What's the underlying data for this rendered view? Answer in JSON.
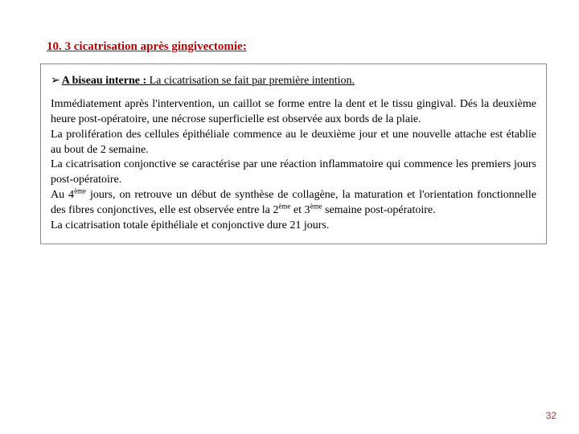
{
  "heading": "10. 3 cicatrisation après gingivectomie:",
  "bullet": {
    "symbol": "➢",
    "bold": "A biseau interne :",
    "rest": " La cicatrisation se fait par première intention."
  },
  "paragraphs": {
    "p1": "Immédiatement après l'intervention, un caillot se forme entre la dent et le tissu gingival. Dés la deuxième heure post-opératoire, une nécrose superficielle est observée aux bords de la plaie.",
    "p2": "La prolifération des cellules épithéliale commence au le deuxième jour et une nouvelle attache est établie au bout de 2 semaine.",
    "p3": "La cicatrisation conjonctive se caractérise par une réaction inflammatoire qui commence les premiers jours post-opératoire.",
    "p4a": "Au 4",
    "p4sup1": "ème",
    "p4b": " jours, on retrouve un début de synthèse de collagène, la maturation et l'orientation fonctionnelle des fibres conjonctives, elle est observée entre la 2",
    "p4sup2": "ème",
    "p4c": " et 3",
    "p4sup3": "ème",
    "p4d": " semaine post-opératoire.",
    "p5": "La cicatrisation totale épithéliale et conjonctive dure 21 jours."
  },
  "pageNumber": "32",
  "colors": {
    "heading": "#c00000",
    "border": "#8a8a8a",
    "text": "#000000",
    "pageNum": "#9a3b3b",
    "background": "#ffffff"
  }
}
